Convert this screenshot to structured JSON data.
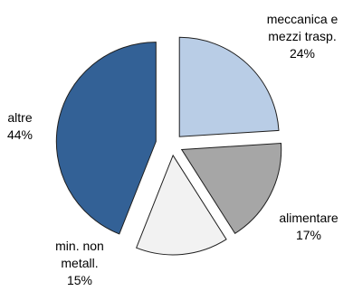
{
  "chart_data": {
    "type": "pie",
    "title": "",
    "slices": [
      {
        "label": [
          "meccanica e",
          "mezzi trasp."
        ],
        "pct_text": "24%",
        "value": 24,
        "color": "#b9cde6"
      },
      {
        "label": [
          "alimentare"
        ],
        "pct_text": "17%",
        "value": 17,
        "color": "#a6a6a6"
      },
      {
        "label": [
          "min. non",
          "metall."
        ],
        "pct_text": "15%",
        "value": 15,
        "color": "#f2f2f2"
      },
      {
        "label": [
          "altre"
        ],
        "pct_text": "44%",
        "value": 44,
        "color": "#336196"
      }
    ]
  }
}
